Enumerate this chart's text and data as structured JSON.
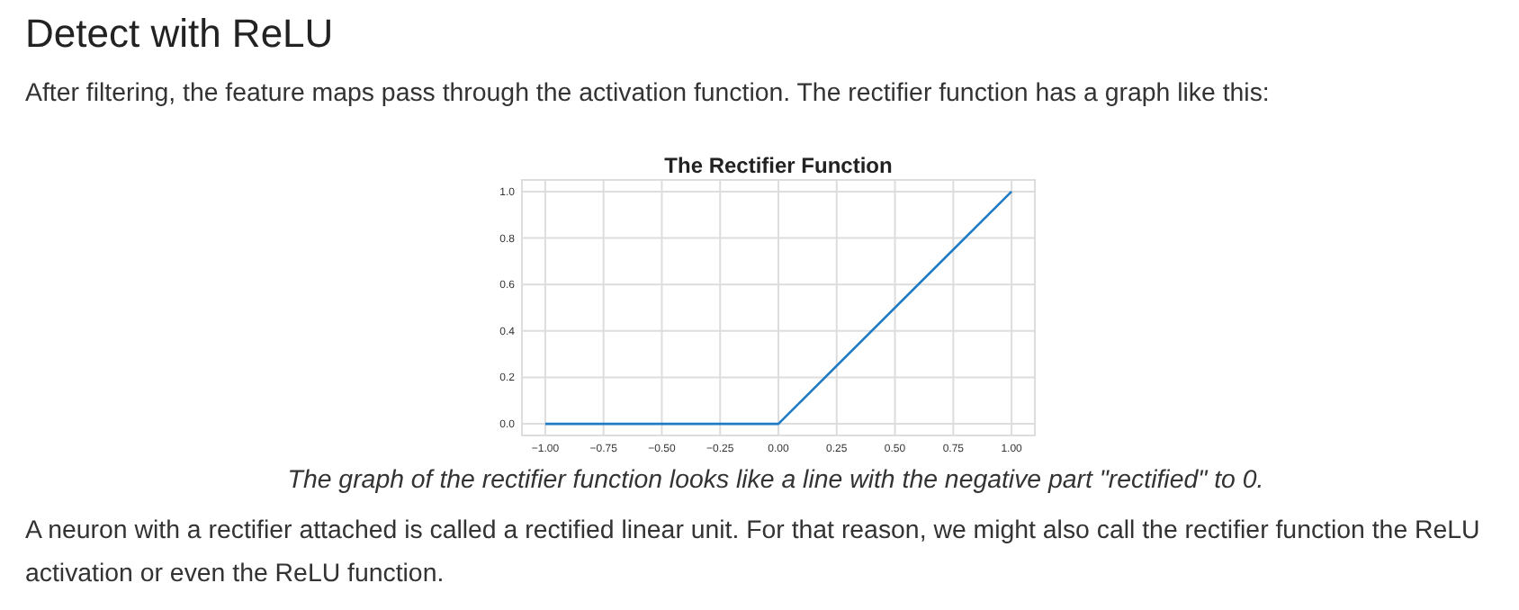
{
  "chart_data": {
    "type": "line",
    "title": "The Rectifier Function",
    "annotations": [
      "Detect with ReLU",
      "After filtering, the feature maps pass through the activation function. The rectifier function has a graph like this:",
      "The graph of the rectifier function looks like a line with the negative part \"rectified\" to 0.",
      "A neuron with a rectifier attached is called a rectified linear unit. For that reason, we might also call the rectifier function the ReLU activation or even the ReLU function."
    ],
    "x": [
      -1,
      0,
      1
    ],
    "series": [
      {
        "color": "#1f7bc4",
        "values": [
          0,
          0,
          1
        ]
      }
    ],
    "xlim": [
      -1.1,
      1.1
    ],
    "ylim": [
      -0.05,
      1.05
    ],
    "xticks": [
      {
        "value": -1,
        "label": "−1.00"
      },
      {
        "value": -0.75,
        "label": "−0.75"
      },
      {
        "value": -0.5,
        "label": "−0.50"
      },
      {
        "value": -0.25,
        "label": "−0.25"
      },
      {
        "value": 0,
        "label": "0.00"
      },
      {
        "value": 0.25,
        "label": "0.25"
      },
      {
        "value": 0.5,
        "label": "0.50"
      },
      {
        "value": 0.75,
        "label": "0.75"
      },
      {
        "value": 1,
        "label": "1.00"
      }
    ],
    "yticks": [
      {
        "value": 0,
        "label": "0.0"
      },
      {
        "value": 0.2,
        "label": "0.2"
      },
      {
        "value": 0.4,
        "label": "0.4"
      },
      {
        "value": 0.6,
        "label": "0.6"
      },
      {
        "value": 0.8,
        "label": "0.8"
      },
      {
        "value": 1,
        "label": "1.0"
      }
    ],
    "grid": true,
    "line_style": "solid",
    "marker": "none"
  }
}
